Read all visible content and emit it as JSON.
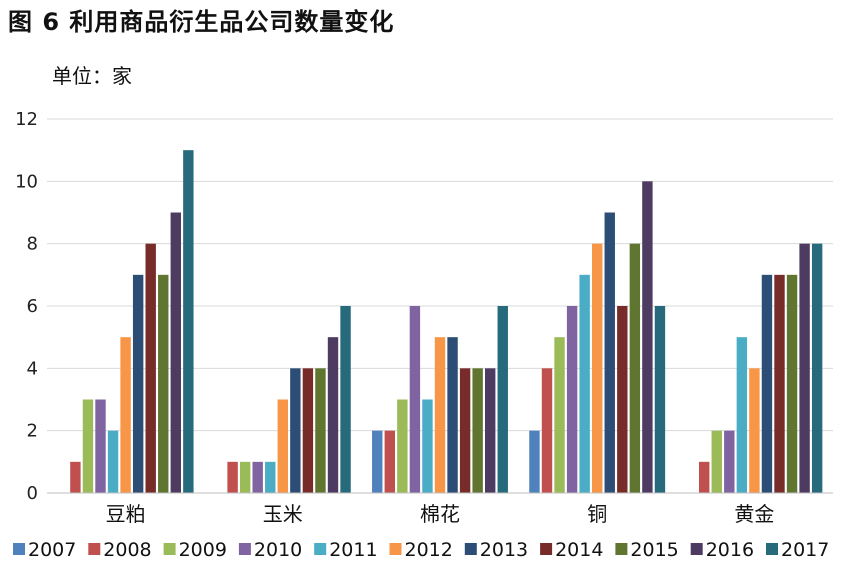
{
  "page": {
    "title": "图 6  利用商品衍生品公司数量变化",
    "unit_label": "单位：家"
  },
  "chart_data": {
    "type": "bar",
    "title": "图 6  利用商品衍生品公司数量变化",
    "subtitle": "单位：家",
    "xlabel": "",
    "ylabel": "",
    "ylim": [
      0,
      12
    ],
    "yticks": [
      0,
      2,
      4,
      6,
      8,
      10,
      12
    ],
    "grid": true,
    "legend_position": "bottom",
    "categories": [
      "豆粕",
      "玉米",
      "棉花",
      "铜",
      "黄金"
    ],
    "series": [
      {
        "name": "2007",
        "color": "#4F81BD",
        "values": [
          0,
          0,
          2,
          2,
          0
        ]
      },
      {
        "name": "2008",
        "color": "#C0504D",
        "values": [
          1,
          1,
          2,
          4,
          1
        ]
      },
      {
        "name": "2009",
        "color": "#9BBB59",
        "values": [
          3,
          1,
          3,
          5,
          2
        ]
      },
      {
        "name": "2010",
        "color": "#8064A2",
        "values": [
          3,
          1,
          6,
          6,
          2
        ]
      },
      {
        "name": "2011",
        "color": "#4BACC6",
        "values": [
          2,
          1,
          3,
          7,
          5
        ]
      },
      {
        "name": "2012",
        "color": "#F79646",
        "values": [
          5,
          3,
          5,
          8,
          4
        ]
      },
      {
        "name": "2013",
        "color": "#2C4D75",
        "values": [
          7,
          4,
          5,
          9,
          7
        ]
      },
      {
        "name": "2014",
        "color": "#772C2A",
        "values": [
          8,
          4,
          4,
          6,
          7
        ]
      },
      {
        "name": "2015",
        "color": "#5F7530",
        "values": [
          7,
          4,
          4,
          8,
          7
        ]
      },
      {
        "name": "2016",
        "color": "#4D3B62",
        "values": [
          9,
          5,
          4,
          10,
          8
        ]
      },
      {
        "name": "2017",
        "color": "#276A7C",
        "values": [
          11,
          6,
          6,
          6,
          8
        ]
      }
    ]
  }
}
